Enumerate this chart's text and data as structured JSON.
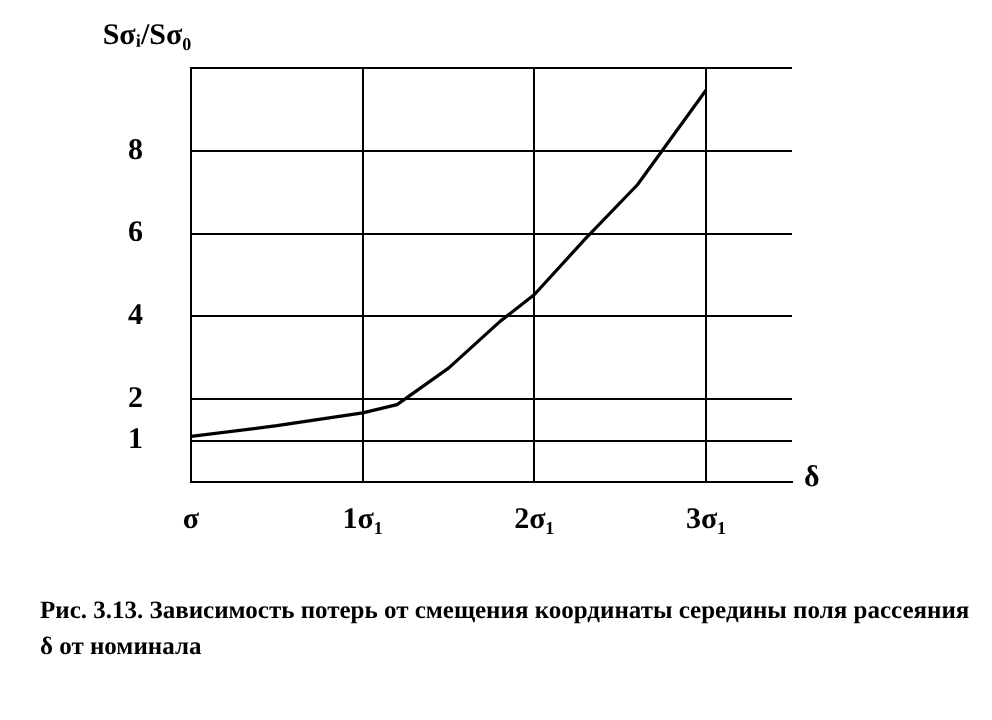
{
  "chart_data": {
    "type": "line",
    "ylabel": "Sσᵢ/Sσ₀",
    "xlabel": "δ",
    "x": [
      0,
      0.5,
      1,
      1.2,
      1.5,
      1.8,
      2,
      2.3,
      2.6,
      3
    ],
    "series": [
      {
        "color": "#000000",
        "values": [
          1.1,
          1.36,
          1.67,
          1.87,
          2.75,
          3.88,
          4.53,
          5.89,
          7.18,
          9.47
        ]
      }
    ],
    "xlim": [
      0,
      3.5
    ],
    "xticks": [
      {
        "value": 0,
        "label": "σ"
      },
      {
        "value": 1,
        "label": "1σ₁"
      },
      {
        "value": 2,
        "label": "2σ₁"
      },
      {
        "value": 3,
        "label": "3σ₁"
      }
    ],
    "ylim": [
      0,
      10
    ],
    "yticks": [
      1,
      2,
      4,
      6,
      8,
      {
        "value": 10,
        "label": null
      }
    ],
    "grid": true,
    "legend": false,
    "marker": "none",
    "line_style": "solid",
    "annotations": [
      "Рис. 3.13. Зависимость потерь от смещения координаты  середины поля рассеяния δ от номинала"
    ]
  }
}
